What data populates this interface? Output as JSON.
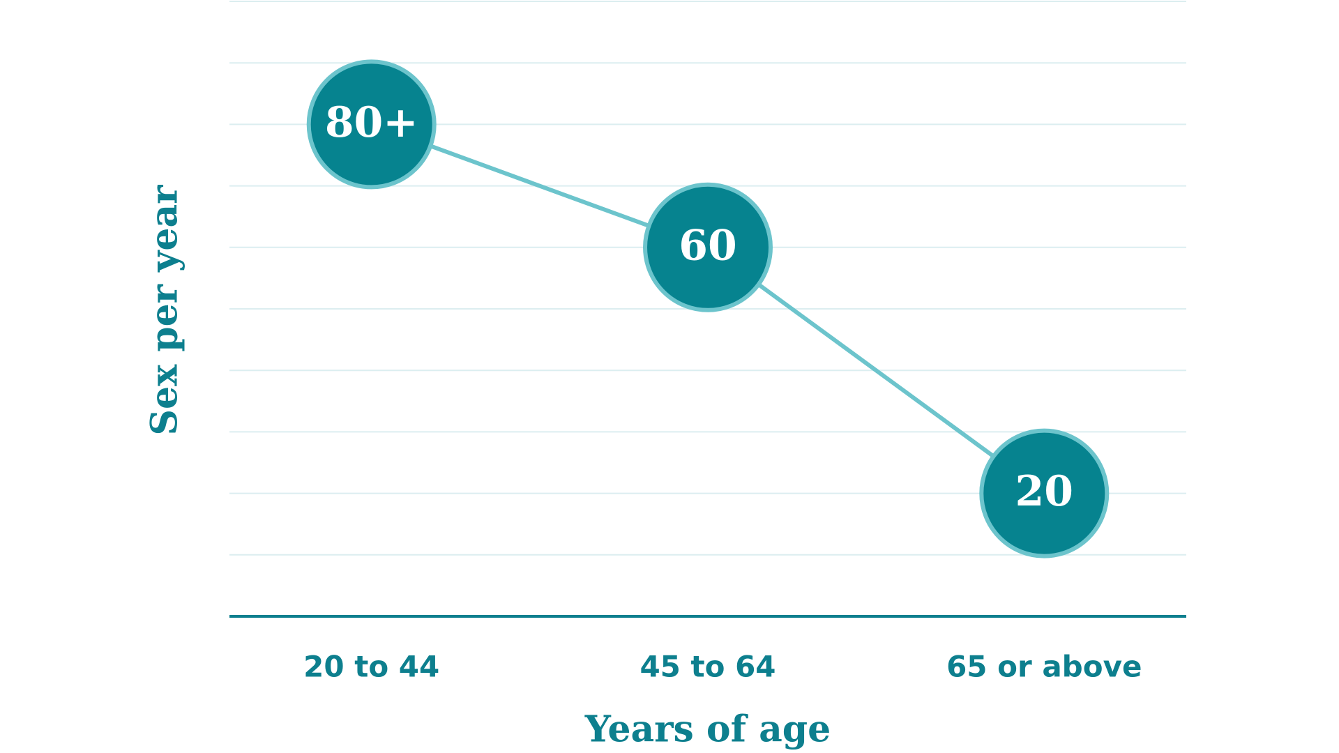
{
  "chart_data": {
    "type": "line",
    "x_label": "Years of age",
    "y_label": "Sex per year",
    "categories": [
      "20 to 44",
      "45 to 64",
      "65 or above"
    ],
    "series": [
      {
        "values": [
          80,
          60,
          20
        ],
        "value_labels": [
          "80+",
          "60",
          "20"
        ],
        "color": "#6cc4cc",
        "marker_color": "#06838f"
      }
    ],
    "ylim": [
      0,
      100
    ],
    "yticks": [
      0,
      10,
      20,
      30,
      40,
      50,
      60,
      70,
      80,
      90,
      100
    ],
    "grid": true,
    "grid_color": "#dceef0",
    "axis_color": "#0d7f8e",
    "text_color": "#0d7f8e"
  }
}
